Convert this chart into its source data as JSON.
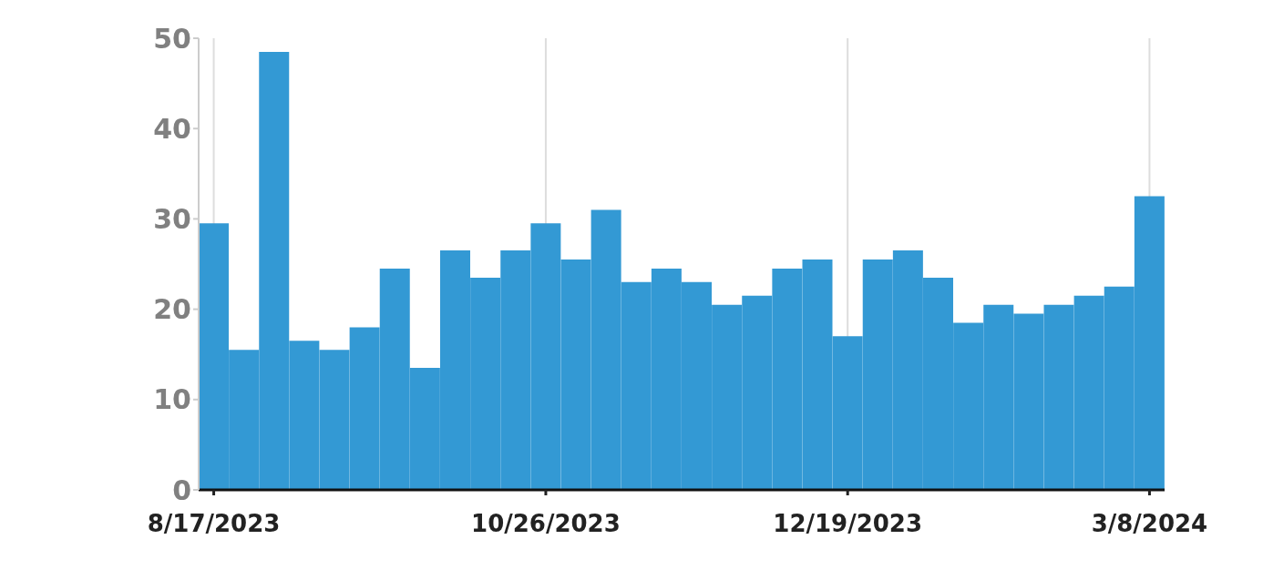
{
  "chart_data": {
    "type": "bar",
    "color": "#3399d4",
    "categories": [
      "8/17/2023",
      null,
      null,
      null,
      null,
      null,
      null,
      null,
      null,
      null,
      null,
      "10/26/2023",
      null,
      null,
      null,
      null,
      null,
      null,
      null,
      null,
      null,
      "12/19/2023",
      null,
      null,
      null,
      null,
      null,
      null,
      null,
      null,
      null,
      "3/8/2024"
    ],
    "values": [
      29.5,
      15.5,
      48.5,
      16.5,
      15.5,
      18,
      24.5,
      13.5,
      26.5,
      23.5,
      26.5,
      29.5,
      25.5,
      31,
      23,
      24.5,
      23,
      20.5,
      21.5,
      24.5,
      25.5,
      17,
      25.5,
      26.5,
      23.5,
      18.5,
      20.5,
      19.5,
      20.5,
      21.5,
      22.5,
      32.5
    ],
    "ylim": [
      0,
      50
    ],
    "yticks": [
      0,
      10,
      20,
      30,
      40,
      50
    ],
    "grid": "x",
    "legend": false
  }
}
